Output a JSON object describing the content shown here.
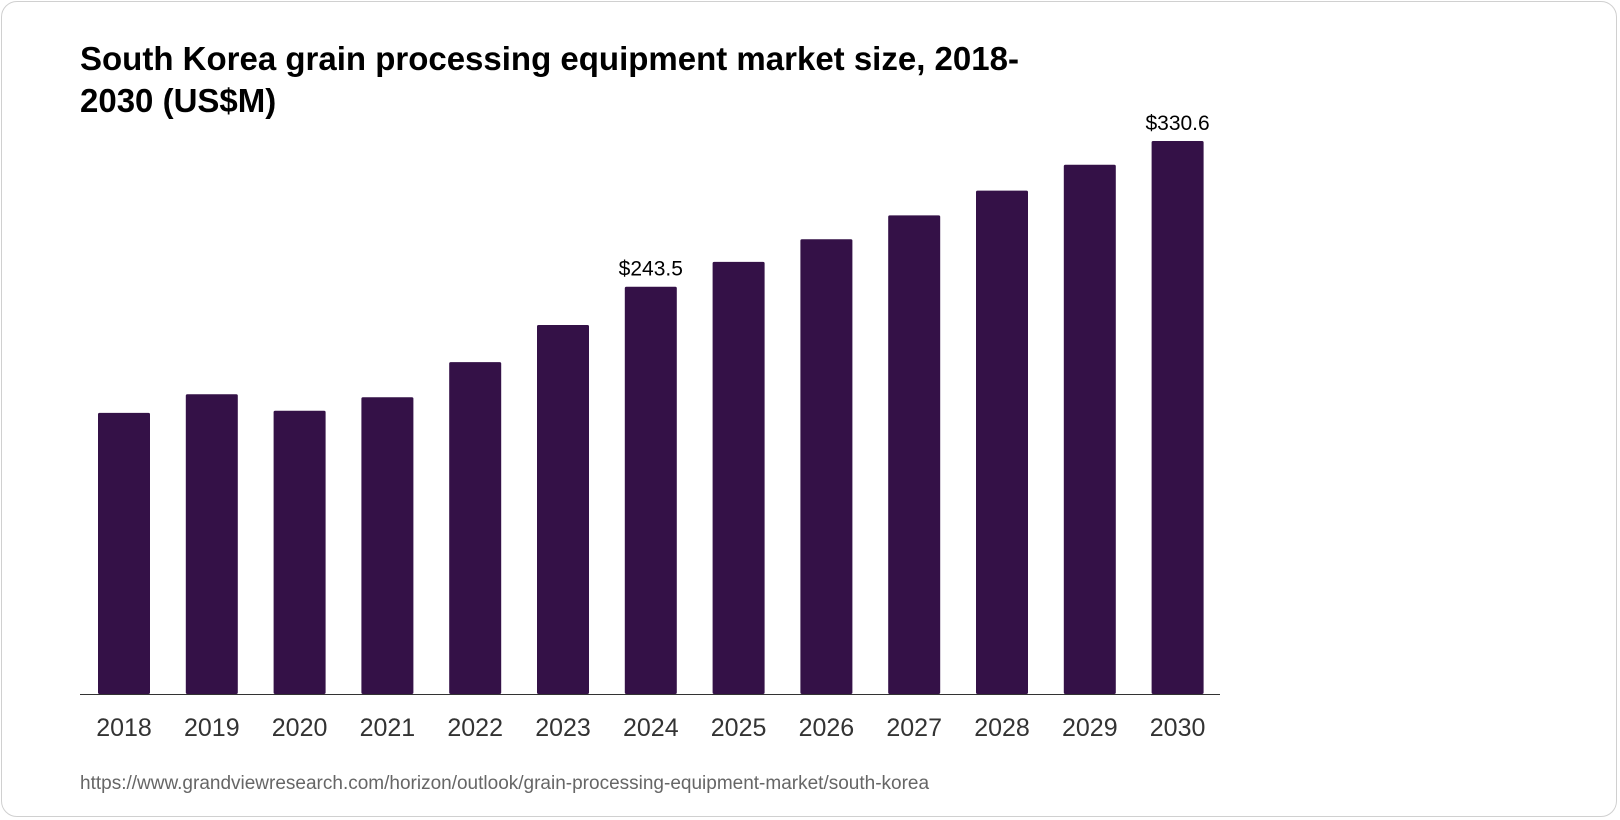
{
  "chart_data": {
    "type": "bar",
    "title": "South Korea grain processing equipment market size, 2018-2030 (US$M)",
    "categories": [
      "2018",
      "2019",
      "2020",
      "2021",
      "2022",
      "2023",
      "2024",
      "2025",
      "2026",
      "2027",
      "2028",
      "2029",
      "2030"
    ],
    "values": [
      168.1,
      179.2,
      169.3,
      177.4,
      198.4,
      220.6,
      243.5,
      258.3,
      271.9,
      286.1,
      300.9,
      316.4,
      330.6
    ],
    "data_labels": {
      "2024": "$243.5",
      "2030": "$330.6"
    },
    "xlabel": "",
    "ylabel": "",
    "ylim": [
      0,
      330.6
    ],
    "grid": false,
    "bar_color": "#341147"
  },
  "source_url": "https://www.grandviewresearch.com/horizon/outlook/grain-processing-equipment-market/south-korea"
}
